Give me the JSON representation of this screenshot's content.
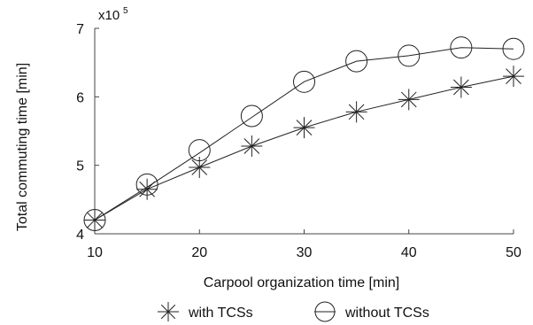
{
  "chart_data": {
    "type": "line",
    "xlabel": "Carpool organization time [min]",
    "ylabel": "Total commuting time [min]",
    "y_multiplier_label": "x10",
    "y_multiplier_exponent": "5",
    "x": [
      10,
      15,
      20,
      25,
      30,
      35,
      40,
      45,
      50
    ],
    "x_ticks": [
      10,
      20,
      30,
      40,
      50
    ],
    "y_ticks": [
      4,
      5,
      6,
      7
    ],
    "xlim": [
      10,
      50
    ],
    "ylim": [
      4,
      7
    ],
    "grid": false,
    "legend_position": "bottom",
    "series": [
      {
        "name": "with TCSs",
        "marker": "asterisk",
        "color": "#222222",
        "values": [
          4.2,
          4.65,
          4.97,
          5.28,
          5.55,
          5.78,
          5.96,
          6.14,
          6.3
        ],
        "line_x": [
          10,
          15,
          20,
          25,
          30,
          35,
          40,
          45,
          50
        ],
        "line_y": [
          4.2,
          4.65,
          4.97,
          5.28,
          5.55,
          5.78,
          5.96,
          6.14,
          6.3
        ]
      },
      {
        "name": "without TCSs",
        "marker": "circle",
        "color": "#222222",
        "values": [
          4.2,
          4.72,
          5.22,
          5.72,
          6.22,
          6.52,
          6.6,
          6.72,
          6.7
        ],
        "line_x": [
          10,
          15,
          20,
          25,
          30,
          35,
          40,
          45,
          50
        ],
        "line_y": [
          4.2,
          4.68,
          5.18,
          5.7,
          6.22,
          6.52,
          6.6,
          6.72,
          6.7
        ]
      }
    ]
  }
}
